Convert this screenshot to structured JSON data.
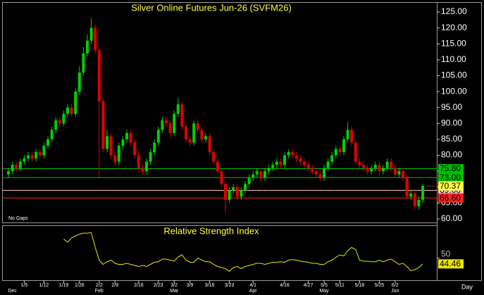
{
  "chart_data": [
    {
      "type": "candlestick",
      "title": "Silver Online Futures Jun-26 (SVFM26)",
      "annotations": [
        "No Gaps",
        "Day"
      ],
      "categories": [
        null,
        null,
        null,
        null,
        "1/5",
        null,
        null,
        null,
        null,
        "1/12",
        null,
        null,
        null,
        null,
        "1/19",
        null,
        null,
        null,
        "1/26",
        null,
        null,
        null,
        null,
        "2/2",
        null,
        null,
        null,
        "2/9",
        null,
        null,
        null,
        null,
        null,
        "2/16",
        null,
        null,
        null,
        null,
        "2/23",
        null,
        null,
        null,
        "3/2",
        null,
        null,
        null,
        "3/9",
        null,
        null,
        null,
        null,
        "3/16",
        null,
        null,
        null,
        null,
        "3/23",
        null,
        null,
        null,
        null,
        null,
        "4/1",
        null,
        null,
        null,
        null,
        null,
        null,
        null,
        "4/16",
        null,
        null,
        null,
        null,
        null,
        "4/27",
        null,
        null,
        null,
        "5/5",
        null,
        null,
        null,
        "5/11",
        null,
        null,
        null,
        null,
        "5/18",
        null,
        null,
        null,
        null,
        "5/25",
        null,
        null,
        null,
        "6/2",
        null,
        null,
        null,
        null,
        null,
        null,
        null
      ],
      "month_labels": [
        null,
        "Dec",
        null,
        null,
        null,
        null,
        null,
        null,
        null,
        null,
        null,
        null,
        null,
        null,
        null,
        null,
        null,
        null,
        null,
        null,
        null,
        null,
        null,
        "Feb",
        null,
        null,
        null,
        null,
        null,
        null,
        null,
        null,
        null,
        null,
        null,
        null,
        null,
        null,
        null,
        null,
        null,
        null,
        "Mar",
        null,
        null,
        null,
        null,
        null,
        null,
        null,
        null,
        null,
        null,
        null,
        null,
        null,
        null,
        null,
        null,
        null,
        null,
        null,
        "Apr",
        null,
        null,
        null,
        null,
        null,
        null,
        null,
        null,
        null,
        null,
        null,
        null,
        null,
        null,
        null,
        null,
        null,
        "May",
        null,
        null,
        null,
        null,
        null,
        null,
        null,
        null,
        null,
        null,
        null,
        null,
        null,
        null,
        null,
        null,
        null,
        "Jun",
        null,
        null,
        null,
        null,
        null,
        null,
        null
      ],
      "open": [
        74,
        75,
        77,
        76,
        78,
        79,
        80,
        79,
        81,
        80,
        83,
        85,
        88,
        91,
        90,
        93,
        95,
        93,
        100,
        106,
        112,
        116,
        120,
        113,
        97,
        82,
        86,
        80,
        78,
        83,
        85,
        87,
        84,
        80,
        76,
        75,
        78,
        81,
        84,
        88,
        91,
        90,
        87,
        93,
        96,
        89,
        85,
        84,
        90,
        88,
        85,
        86,
        81,
        78,
        75,
        71,
        66,
        69,
        70,
        67,
        69,
        71,
        73,
        74,
        75,
        73,
        75,
        76,
        77,
        78,
        77,
        80,
        81,
        80,
        79,
        78,
        77,
        76,
        75,
        74,
        73,
        76,
        78,
        80,
        82,
        81,
        85,
        88,
        84,
        78,
        77,
        76,
        75,
        76,
        77,
        75,
        76,
        78,
        76,
        74,
        75,
        73,
        67,
        68,
        64,
        66
      ],
      "high": [
        76,
        78,
        78,
        79,
        80,
        81,
        81,
        82,
        82,
        84,
        86,
        89,
        92,
        92,
        94,
        96,
        96,
        101,
        108,
        114,
        118,
        123,
        121,
        114,
        98,
        88,
        87,
        81,
        84,
        86,
        88,
        88,
        85,
        81,
        77,
        79,
        82,
        85,
        89,
        92,
        92,
        91,
        94,
        98,
        97,
        90,
        86,
        91,
        91,
        89,
        87,
        87,
        82,
        79,
        76,
        72,
        70,
        71,
        71,
        70,
        72,
        74,
        75,
        76,
        76,
        76,
        77,
        78,
        79,
        79,
        81,
        82,
        82,
        81,
        80,
        79,
        78,
        77,
        76,
        75,
        77,
        79,
        81,
        83,
        83,
        86,
        90.5,
        89,
        85,
        79,
        78,
        77,
        77,
        78,
        78,
        77,
        79,
        79,
        77,
        76,
        76,
        74,
        69,
        69,
        67,
        71
      ],
      "low": [
        73,
        74,
        75,
        75,
        77,
        78,
        78,
        78,
        79,
        79,
        82,
        84,
        87,
        89,
        89,
        92,
        92,
        92,
        99,
        105,
        111,
        115,
        112,
        73,
        81,
        81,
        79,
        77,
        77,
        82,
        84,
        83,
        79,
        75,
        74,
        74,
        77,
        80,
        83,
        87,
        89,
        86,
        86,
        92,
        88,
        84,
        83,
        83,
        87,
        84,
        84,
        80,
        77,
        74,
        70,
        62,
        65,
        68,
        66,
        66,
        68,
        70,
        72,
        73,
        72,
        72,
        74,
        75,
        76,
        76,
        76,
        79,
        79,
        78,
        77,
        76,
        75,
        74,
        73,
        72,
        72,
        75,
        77,
        79,
        80,
        80,
        84,
        83,
        77,
        76,
        75,
        74,
        74,
        75,
        74,
        74,
        75,
        75,
        73,
        73,
        72,
        66,
        66,
        63,
        63,
        65
      ],
      "close": [
        75,
        77,
        76,
        78,
        79,
        80,
        79,
        81,
        80,
        83,
        85,
        88,
        91,
        90,
        93,
        95,
        93,
        100,
        106,
        112,
        116,
        120,
        113,
        97,
        82,
        86,
        80,
        78,
        83,
        85,
        87,
        84,
        80,
        76,
        75,
        78,
        81,
        84,
        88,
        91,
        90,
        87,
        93,
        96,
        89,
        85,
        84,
        90,
        88,
        85,
        86,
        81,
        78,
        75,
        71,
        66,
        69,
        70,
        67,
        69,
        71,
        73,
        74,
        75,
        73,
        75,
        76,
        77,
        78,
        77,
        80,
        81,
        80,
        79,
        78,
        77,
        76,
        75,
        74,
        73,
        76,
        78,
        80,
        82,
        81,
        85,
        88,
        84,
        78,
        77,
        76,
        75,
        76,
        77,
        75,
        76,
        78,
        76,
        74,
        75,
        73,
        67,
        68,
        64,
        66,
        70.37
      ],
      "up_color": "#00d000",
      "down_color": "#e00000",
      "ylim": [
        58.9,
        128.1
      ],
      "yticks": [
        {
          "value": 60,
          "label": "60.00"
        },
        {
          "value": 65,
          "label": "65.00"
        },
        {
          "value": 70,
          "label": "70.00"
        },
        {
          "value": 75,
          "label": "75.00"
        },
        {
          "value": 80,
          "label": "80.00"
        },
        {
          "value": 85,
          "label": "85.00"
        },
        {
          "value": 90,
          "label": "90.00"
        },
        {
          "value": 95,
          "label": "95.00"
        },
        {
          "value": 100,
          "label": "100.00"
        },
        {
          "value": 105,
          "label": "105.00"
        },
        {
          "value": 110,
          "label": "110.00"
        },
        {
          "value": 115,
          "label": "115.00"
        },
        {
          "value": 120,
          "label": "120.00"
        },
        {
          "value": 125,
          "label": "125.00"
        }
      ],
      "levels": [
        {
          "value": 75.8,
          "label": "75.80",
          "color": "#00c000"
        },
        {
          "value": 73,
          "label": "73.00",
          "color": "#00c000"
        },
        {
          "value": 69,
          "label": "69.00",
          "color": "#ffc8c8"
        },
        {
          "value": 66.6,
          "label": "66.60",
          "color": "#ff2020"
        }
      ],
      "last_color": "#ffff40"
    },
    {
      "type": "line",
      "title": "Relative Strength Index",
      "color": "#e8e800",
      "values": [
        null,
        null,
        null,
        null,
        null,
        null,
        null,
        null,
        null,
        null,
        null,
        null,
        null,
        null,
        68,
        65,
        69,
        71,
        72.5,
        73.6,
        73.6,
        74,
        60,
        48,
        44,
        46.5,
        48,
        45,
        44,
        44,
        45,
        44,
        43,
        42,
        43,
        42,
        44,
        46,
        46.5,
        49,
        49,
        48,
        47,
        51,
        53,
        48,
        46,
        46,
        50,
        48,
        46.5,
        46.5,
        44,
        42,
        41,
        40,
        37.5,
        41,
        42,
        40,
        42,
        43,
        44,
        45,
        45,
        44,
        45,
        46,
        46,
        46.5,
        46,
        48,
        48.6,
        48,
        47,
        46.5,
        46,
        45,
        45,
        44,
        44,
        46.5,
        48,
        50.7,
        53,
        52,
        57,
        60,
        58,
        48,
        47,
        47,
        46.5,
        46.5,
        48,
        46.5,
        48,
        49,
        46.5,
        44,
        45,
        42,
        38,
        39,
        41,
        44.46
      ],
      "ylim": [
        29,
        81
      ],
      "yticks": [
        50
      ]
    }
  ]
}
